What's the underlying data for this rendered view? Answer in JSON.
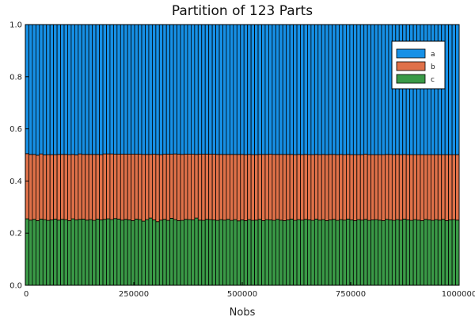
{
  "chart_data": {
    "type": "bar",
    "stacked": true,
    "title": "Partition of 123 Parts",
    "xlabel": "Nobs",
    "ylabel": "",
    "xlim": [
      0,
      1000000
    ],
    "ylim": [
      0,
      1
    ],
    "xticks": [
      0,
      250000,
      500000,
      750000,
      1000000
    ],
    "xtick_labels": [
      "0",
      "250000",
      "500000",
      "750000",
      "1000000"
    ],
    "yticks": [
      0.0,
      0.2,
      0.4,
      0.6,
      0.8,
      1.0
    ],
    "ytick_labels": [
      "0.0",
      "0.2",
      "0.4",
      "0.6",
      "0.8",
      "1.0"
    ],
    "grid": false,
    "legend_position": "top-right",
    "n_bins": 123,
    "series": [
      {
        "name": "c",
        "color": "#3a9a47",
        "values": [
          0.255,
          0.25,
          0.253,
          0.248,
          0.254,
          0.252,
          0.249,
          0.251,
          0.254,
          0.25,
          0.253,
          0.252,
          0.248,
          0.255,
          0.251,
          0.253,
          0.254,
          0.25,
          0.252,
          0.249,
          0.254,
          0.251,
          0.253,
          0.255,
          0.252,
          0.256,
          0.254,
          0.25,
          0.253,
          0.251,
          0.248,
          0.254,
          0.252,
          0.246,
          0.252,
          0.258,
          0.251,
          0.244,
          0.25,
          0.253,
          0.249,
          0.257,
          0.252,
          0.248,
          0.249,
          0.253,
          0.252,
          0.251,
          0.258,
          0.25,
          0.249,
          0.253,
          0.252,
          0.251,
          0.249,
          0.252,
          0.25,
          0.253,
          0.249,
          0.252,
          0.247,
          0.251,
          0.248,
          0.252,
          0.249,
          0.25,
          0.253,
          0.248,
          0.252,
          0.251,
          0.249,
          0.253,
          0.25,
          0.248,
          0.251,
          0.254,
          0.249,
          0.252,
          0.25,
          0.253,
          0.251,
          0.249,
          0.254,
          0.25,
          0.252,
          0.248,
          0.251,
          0.253,
          0.249,
          0.252,
          0.25,
          0.254,
          0.251,
          0.248,
          0.252,
          0.25,
          0.253,
          0.249,
          0.251,
          0.252,
          0.25,
          0.248,
          0.253,
          0.251,
          0.249,
          0.252,
          0.25,
          0.254,
          0.251,
          0.249,
          0.252,
          0.25,
          0.248,
          0.253,
          0.251,
          0.249,
          0.252,
          0.25,
          0.253,
          0.248,
          0.251,
          0.252,
          0.25
        ]
      },
      {
        "name": "b",
        "color": "#e07149",
        "values": [
          0.25,
          0.252,
          0.249,
          0.251,
          0.25,
          0.248,
          0.252,
          0.25,
          0.247,
          0.252,
          0.249,
          0.25,
          0.253,
          0.247,
          0.249,
          0.251,
          0.248,
          0.252,
          0.25,
          0.253,
          0.248,
          0.25,
          0.251,
          0.249,
          0.252,
          0.247,
          0.249,
          0.253,
          0.25,
          0.252,
          0.255,
          0.249,
          0.251,
          0.256,
          0.25,
          0.244,
          0.252,
          0.258,
          0.251,
          0.25,
          0.254,
          0.246,
          0.252,
          0.255,
          0.253,
          0.25,
          0.251,
          0.252,
          0.244,
          0.253,
          0.254,
          0.25,
          0.251,
          0.252,
          0.253,
          0.25,
          0.252,
          0.249,
          0.253,
          0.25,
          0.255,
          0.251,
          0.253,
          0.25,
          0.252,
          0.251,
          0.249,
          0.254,
          0.25,
          0.252,
          0.253,
          0.249,
          0.252,
          0.254,
          0.251,
          0.248,
          0.252,
          0.25,
          0.251,
          0.249,
          0.25,
          0.252,
          0.248,
          0.251,
          0.25,
          0.253,
          0.251,
          0.249,
          0.252,
          0.25,
          0.251,
          0.248,
          0.25,
          0.253,
          0.249,
          0.251,
          0.25,
          0.252,
          0.25,
          0.249,
          0.251,
          0.253,
          0.249,
          0.251,
          0.252,
          0.25,
          0.251,
          0.248,
          0.25,
          0.252,
          0.249,
          0.251,
          0.253,
          0.248,
          0.25,
          0.252,
          0.249,
          0.251,
          0.248,
          0.253,
          0.25,
          0.249,
          0.251
        ]
      },
      {
        "name": "a",
        "color": "#1690e6",
        "values": [
          0.495,
          0.498,
          0.498,
          0.501,
          0.496,
          0.5,
          0.499,
          0.499,
          0.499,
          0.498,
          0.498,
          0.498,
          0.499,
          0.498,
          0.5,
          0.496,
          0.498,
          0.498,
          0.498,
          0.498,
          0.498,
          0.499,
          0.496,
          0.496,
          0.496,
          0.497,
          0.497,
          0.497,
          0.497,
          0.497,
          0.497,
          0.497,
          0.497,
          0.498,
          0.498,
          0.498,
          0.497,
          0.498,
          0.499,
          0.497,
          0.497,
          0.497,
          0.496,
          0.497,
          0.498,
          0.497,
          0.497,
          0.497,
          0.498,
          0.497,
          0.497,
          0.497,
          0.497,
          0.497,
          0.498,
          0.498,
          0.498,
          0.498,
          0.498,
          0.498,
          0.498,
          0.498,
          0.499,
          0.498,
          0.499,
          0.499,
          0.498,
          0.498,
          0.498,
          0.497,
          0.498,
          0.498,
          0.498,
          0.498,
          0.498,
          0.498,
          0.499,
          0.498,
          0.499,
          0.498,
          0.499,
          0.499,
          0.498,
          0.499,
          0.498,
          0.499,
          0.498,
          0.498,
          0.499,
          0.498,
          0.499,
          0.498,
          0.499,
          0.499,
          0.499,
          0.499,
          0.497,
          0.499,
          0.499,
          0.499,
          0.499,
          0.499,
          0.498,
          0.498,
          0.499,
          0.498,
          0.499,
          0.498,
          0.499,
          0.499,
          0.499,
          0.499,
          0.499,
          0.499,
          0.499,
          0.499,
          0.499,
          0.499,
          0.499,
          0.499,
          0.499,
          0.499,
          0.499
        ]
      }
    ],
    "legend": [
      {
        "label": "a",
        "color": "#1690e6"
      },
      {
        "label": "b",
        "color": "#e07149"
      },
      {
        "label": "c",
        "color": "#3a9a47"
      }
    ]
  }
}
